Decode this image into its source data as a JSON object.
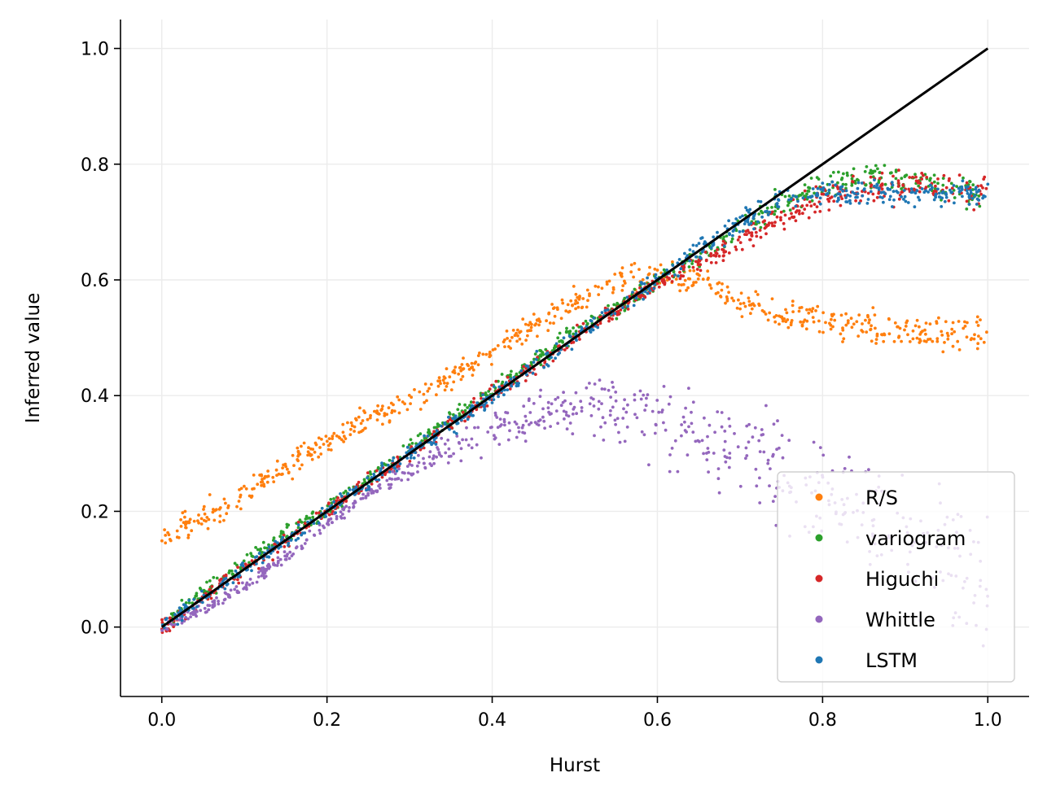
{
  "chart_data": {
    "type": "scatter",
    "title": "",
    "xlabel": "Hurst",
    "ylabel": "Inferred value",
    "xlim": [
      -0.05,
      1.05
    ],
    "ylim": [
      -0.12,
      1.05
    ],
    "xticks": [
      0.0,
      0.2,
      0.4,
      0.6,
      0.8,
      1.0
    ],
    "yticks": [
      0.0,
      0.2,
      0.4,
      0.6,
      0.8,
      1.0
    ],
    "xtick_labels": [
      "0.0",
      "0.2",
      "0.4",
      "0.6",
      "0.8",
      "1.0"
    ],
    "ytick_labels": [
      "0.0",
      "0.2",
      "0.4",
      "0.6",
      "0.8",
      "1.0"
    ],
    "grid": true,
    "legend_position": "lower-right",
    "reference_line": {
      "x": [
        0.0,
        1.0
      ],
      "y": [
        0.0,
        1.0
      ],
      "color": "#000000"
    },
    "series": [
      {
        "name": "R/S",
        "color": "#ff7f0e",
        "x": [
          0.0,
          0.05,
          0.1,
          0.15,
          0.2,
          0.25,
          0.3,
          0.35,
          0.4,
          0.45,
          0.5,
          0.55,
          0.6,
          0.65,
          0.7,
          0.75,
          0.8,
          0.85,
          0.9,
          0.95,
          1.0
        ],
        "y": [
          0.16,
          0.19,
          0.23,
          0.28,
          0.32,
          0.36,
          0.39,
          0.43,
          0.47,
          0.52,
          0.56,
          0.6,
          0.61,
          0.6,
          0.56,
          0.54,
          0.53,
          0.52,
          0.51,
          0.51,
          0.5
        ]
      },
      {
        "name": "variogram",
        "color": "#2ca02c",
        "x": [
          0.0,
          0.05,
          0.1,
          0.15,
          0.2,
          0.25,
          0.3,
          0.35,
          0.4,
          0.45,
          0.5,
          0.55,
          0.6,
          0.65,
          0.7,
          0.75,
          0.8,
          0.85,
          0.9,
          0.95,
          1.0
        ],
        "y": [
          0.0,
          0.06,
          0.11,
          0.16,
          0.2,
          0.26,
          0.31,
          0.36,
          0.41,
          0.46,
          0.51,
          0.55,
          0.6,
          0.64,
          0.69,
          0.73,
          0.76,
          0.78,
          0.77,
          0.76,
          0.74
        ]
      },
      {
        "name": "Higuchi",
        "color": "#d62728",
        "x": [
          0.0,
          0.05,
          0.1,
          0.15,
          0.2,
          0.25,
          0.3,
          0.35,
          0.4,
          0.45,
          0.5,
          0.55,
          0.6,
          0.65,
          0.7,
          0.75,
          0.8,
          0.85,
          0.9,
          0.95,
          1.0
        ],
        "y": [
          0.0,
          0.05,
          0.1,
          0.15,
          0.2,
          0.25,
          0.3,
          0.35,
          0.4,
          0.45,
          0.5,
          0.55,
          0.59,
          0.63,
          0.67,
          0.71,
          0.74,
          0.76,
          0.76,
          0.76,
          0.75
        ]
      },
      {
        "name": "Whittle",
        "color": "#9467bd",
        "x": [
          0.0,
          0.05,
          0.1,
          0.15,
          0.2,
          0.25,
          0.3,
          0.35,
          0.4,
          0.45,
          0.5,
          0.55,
          0.6,
          0.65,
          0.7,
          0.75,
          0.8,
          0.85,
          0.9,
          0.95,
          1.0
        ],
        "y": [
          0.0,
          0.03,
          0.07,
          0.12,
          0.18,
          0.23,
          0.27,
          0.31,
          0.34,
          0.37,
          0.39,
          0.38,
          0.36,
          0.33,
          0.3,
          0.27,
          0.24,
          0.2,
          0.17,
          0.12,
          0.05
        ]
      },
      {
        "name": "LSTM",
        "color": "#1f77b4",
        "x": [
          0.0,
          0.05,
          0.1,
          0.15,
          0.2,
          0.25,
          0.3,
          0.35,
          0.4,
          0.45,
          0.5,
          0.55,
          0.6,
          0.65,
          0.7,
          0.75,
          0.8,
          0.85,
          0.9,
          0.95,
          1.0
        ],
        "y": [
          0.0,
          0.05,
          0.1,
          0.15,
          0.2,
          0.25,
          0.3,
          0.35,
          0.4,
          0.45,
          0.5,
          0.55,
          0.6,
          0.65,
          0.7,
          0.74,
          0.75,
          0.75,
          0.75,
          0.75,
          0.75
        ]
      }
    ]
  }
}
